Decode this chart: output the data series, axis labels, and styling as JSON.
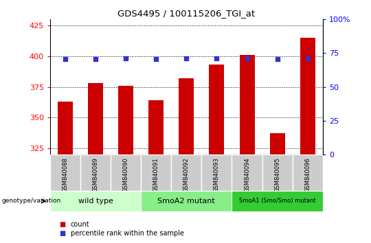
{
  "title": "GDS4495 / 100115206_TGI_at",
  "samples": [
    "GSM840088",
    "GSM840089",
    "GSM840090",
    "GSM840091",
    "GSM840092",
    "GSM840093",
    "GSM840094",
    "GSM840095",
    "GSM840096"
  ],
  "counts": [
    363,
    378,
    376,
    364,
    382,
    393,
    401,
    337,
    415
  ],
  "percentile_ranks": [
    70.5,
    70.5,
    71,
    70.5,
    71,
    71,
    71,
    70.5,
    71
  ],
  "ylim_left": [
    320,
    430
  ],
  "ylim_right": [
    0,
    100
  ],
  "yticks_left": [
    325,
    350,
    375,
    400,
    425
  ],
  "yticks_right": [
    0,
    25,
    50,
    75,
    100
  ],
  "bar_color": "#cc0000",
  "dot_color": "#3333cc",
  "bar_bottom": 320,
  "groups": [
    {
      "label": "wild type",
      "start": 0,
      "end": 3,
      "color": "#ccffcc"
    },
    {
      "label": "SmoA2 mutant",
      "start": 3,
      "end": 6,
      "color": "#88ee88"
    },
    {
      "label": "SmoA1 (Smo/Smo) mutant",
      "start": 6,
      "end": 9,
      "color": "#33cc33"
    }
  ],
  "legend_count_label": "count",
  "legend_percentile_label": "percentile rank within the sample",
  "genotype_label": "genotype/variation"
}
